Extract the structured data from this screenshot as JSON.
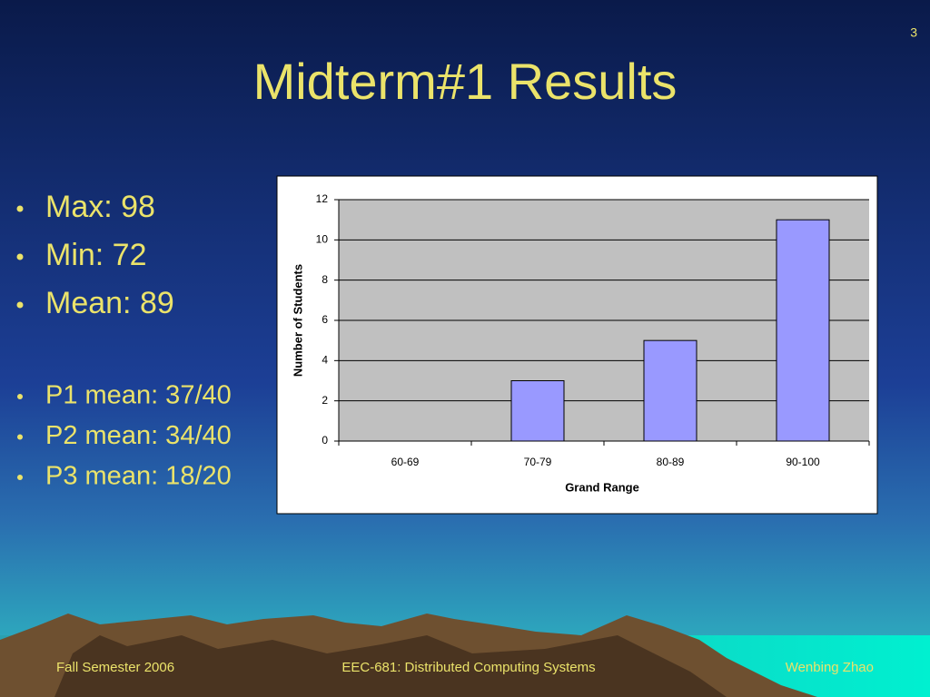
{
  "slide_number": "3",
  "title": "Midterm#1 Results",
  "bullets": [
    "Max: 98",
    "Min: 72",
    "Mean: 89"
  ],
  "sub_bullets": [
    "P1 mean: 37/40",
    "P2 mean: 34/40",
    "P3 mean: 18/20"
  ],
  "footer": {
    "left": "Fall Semester 2006",
    "center": "EEC-681: Distributed Computing Systems",
    "right": "Wenbing Zhao"
  },
  "chart_data": {
    "type": "bar",
    "categories": [
      "60-69",
      "70-79",
      "80-89",
      "90-100"
    ],
    "values": [
      0,
      3,
      5,
      11
    ],
    "color": "#9999ff",
    "x_label": "Grand Range",
    "y_label": "Number of Students",
    "ylim": [
      0,
      12
    ],
    "yticks": [
      0,
      2,
      4,
      6,
      8,
      10,
      12
    ],
    "grid": true
  }
}
